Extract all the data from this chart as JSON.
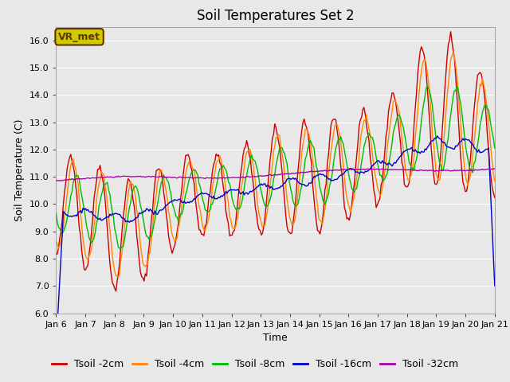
{
  "title": "Soil Temperatures Set 2",
  "xlabel": "Time",
  "ylabel": "Soil Temperature (C)",
  "ylim": [
    6.0,
    16.5
  ],
  "yticks": [
    6.0,
    7.0,
    8.0,
    9.0,
    10.0,
    11.0,
    12.0,
    13.0,
    14.0,
    15.0,
    16.0
  ],
  "xtick_labels": [
    "Jan 6",
    "Jan 7",
    "Jan 8",
    "Jan 9",
    "Jan 10",
    "Jan 11",
    "Jan 12",
    "Jan 13",
    "Jan 14",
    "Jan 15",
    "Jan 16",
    "Jan 17",
    "Jan 18",
    "Jan 19",
    "Jan 20",
    "Jan 21"
  ],
  "series": [
    {
      "label": "Tsoil -2cm",
      "color": "#CC0000"
    },
    {
      "label": "Tsoil -4cm",
      "color": "#FF8800"
    },
    {
      "label": "Tsoil -8cm",
      "color": "#00BB00"
    },
    {
      "label": "Tsoil -16cm",
      "color": "#0000CC"
    },
    {
      "label": "Tsoil -32cm",
      "color": "#AA00AA"
    }
  ],
  "bg_color": "#E8E8E8",
  "grid_color": "#FFFFFF",
  "annotation_text": "VR_met",
  "annotation_bg": "#CCCC00",
  "annotation_border": "#663300",
  "linewidth": 1.0,
  "title_fontsize": 12,
  "label_fontsize": 9,
  "tick_fontsize": 8,
  "legend_fontsize": 9
}
